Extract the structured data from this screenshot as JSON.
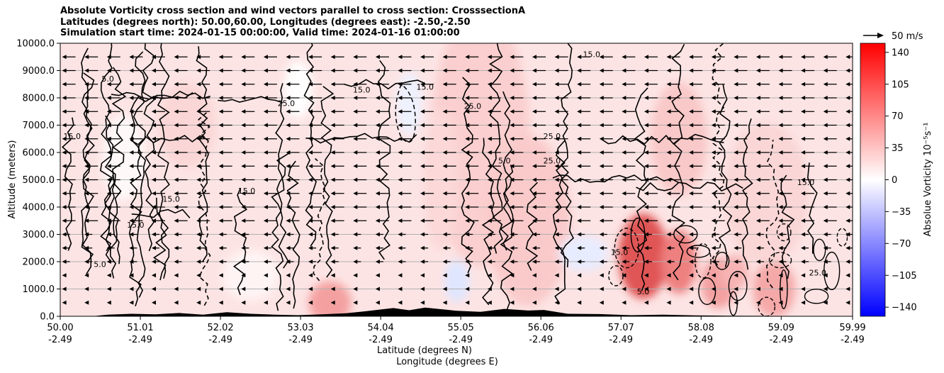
{
  "title": {
    "line1": "Absolute Vorticity cross section and wind vectors parallel to cross section: CrosssectionA",
    "line2": "Latitudes (degrees north): 50.00,60.00, Longitudes (degrees east): -2.50,-2.50",
    "line3": "Simulation start time: 2024-01-15 00:00:00, Valid time: 2024-01-16 01:00:00"
  },
  "chart_data": {
    "type": "heatmap",
    "xlabel": "Latitude (degrees N)",
    "xlabel2": "Longitude (degrees E)",
    "ylabel": "Altitude (meters)",
    "xlim": [
      50.0,
      59.99
    ],
    "ylim": [
      0.0,
      10000.0
    ],
    "x_ticks": [
      {
        "lat": "50.00",
        "lon": "-2.49",
        "value": 50.0
      },
      {
        "lat": "51.01",
        "lon": "-2.49",
        "value": 51.01
      },
      {
        "lat": "52.02",
        "lon": "-2.49",
        "value": 52.02
      },
      {
        "lat": "53.03",
        "lon": "-2.49",
        "value": 53.03
      },
      {
        "lat": "54.04",
        "lon": "-2.49",
        "value": 54.04
      },
      {
        "lat": "55.05",
        "lon": "-2.49",
        "value": 55.05
      },
      {
        "lat": "56.06",
        "lon": "-2.49",
        "value": 56.06
      },
      {
        "lat": "57.07",
        "lon": "-2.49",
        "value": 57.07
      },
      {
        "lat": "58.08",
        "lon": "-2.49",
        "value": 58.08
      },
      {
        "lat": "59.09",
        "lon": "-2.49",
        "value": 59.09
      },
      {
        "lat": "59.99",
        "lon": "-2.49",
        "value": 59.99
      }
    ],
    "y_ticks": [
      "0.0",
      "1000.0",
      "2000.0",
      "3000.0",
      "4000.0",
      "5000.0",
      "6000.0",
      "7000.0",
      "8000.0",
      "9000.0",
      "10000.0"
    ],
    "y_tick_values": [
      0,
      1000,
      2000,
      3000,
      4000,
      5000,
      6000,
      7000,
      8000,
      9000,
      10000
    ],
    "grid": "horizontal",
    "colorbar": {
      "label": "Absolue Vorticity 10⁻⁵s⁻¹",
      "range": [
        -150,
        150
      ],
      "ticks": [
        "140",
        "105",
        "70",
        "35",
        "0",
        "−35",
        "−70",
        "−105",
        "−140"
      ],
      "tick_values": [
        140,
        105,
        70,
        35,
        0,
        -35,
        -70,
        -105,
        -140
      ],
      "colormap": "bwr",
      "low_color": "#0000ff",
      "mid_color": "#ffffff",
      "high_color": "#ff0000"
    },
    "quiver_key": {
      "label": "50 m/s",
      "speed": 50
    },
    "contour_levels": [
      "15.0",
      "25.0",
      "5.0",
      "5.0"
    ],
    "contour_label_samples": [
      {
        "text": "15.0",
        "x": 56.7,
        "y": 9500
      },
      {
        "text": "25.0",
        "x": 56.2,
        "y": 6500
      },
      {
        "text": "5.0",
        "x": 55.6,
        "y": 5600
      },
      {
        "text": "25.0",
        "x": 56.2,
        "y": 5600
      },
      {
        "text": "15.0",
        "x": 51.4,
        "y": 4200
      },
      {
        "text": "15.0",
        "x": 50.95,
        "y": 3250
      },
      {
        "text": "5.0",
        "x": 50.5,
        "y": 1800
      },
      {
        "text": "15.0",
        "x": 53.8,
        "y": 8200
      },
      {
        "text": "15.0",
        "x": 50.15,
        "y": 6500
      },
      {
        "text": "25.0",
        "x": 55.2,
        "y": 7600
      },
      {
        "text": "15.0",
        "x": 57.05,
        "y": 2250
      },
      {
        "text": "5.0",
        "x": 57.35,
        "y": 800
      },
      {
        "text": "25.0",
        "x": 59.55,
        "y": 1500
      },
      {
        "text": "15.0",
        "x": 59.4,
        "y": 4800
      },
      {
        "text": "15.0",
        "x": 52.35,
        "y": 4500
      },
      {
        "text": "25.0",
        "x": 52.85,
        "y": 7700
      },
      {
        "text": "5.0",
        "x": 50.6,
        "y": 8600
      },
      {
        "text": "15.0",
        "x": 54.6,
        "y": 8300
      }
    ],
    "wind_field": {
      "direction": "southward (toward 50N)",
      "upper_levels_speed": "about 50 m/s",
      "lower_levels_speed": "weaker near surface"
    },
    "terrain": "black orography along bottom, peaks near 54.4N-56.0N"
  }
}
